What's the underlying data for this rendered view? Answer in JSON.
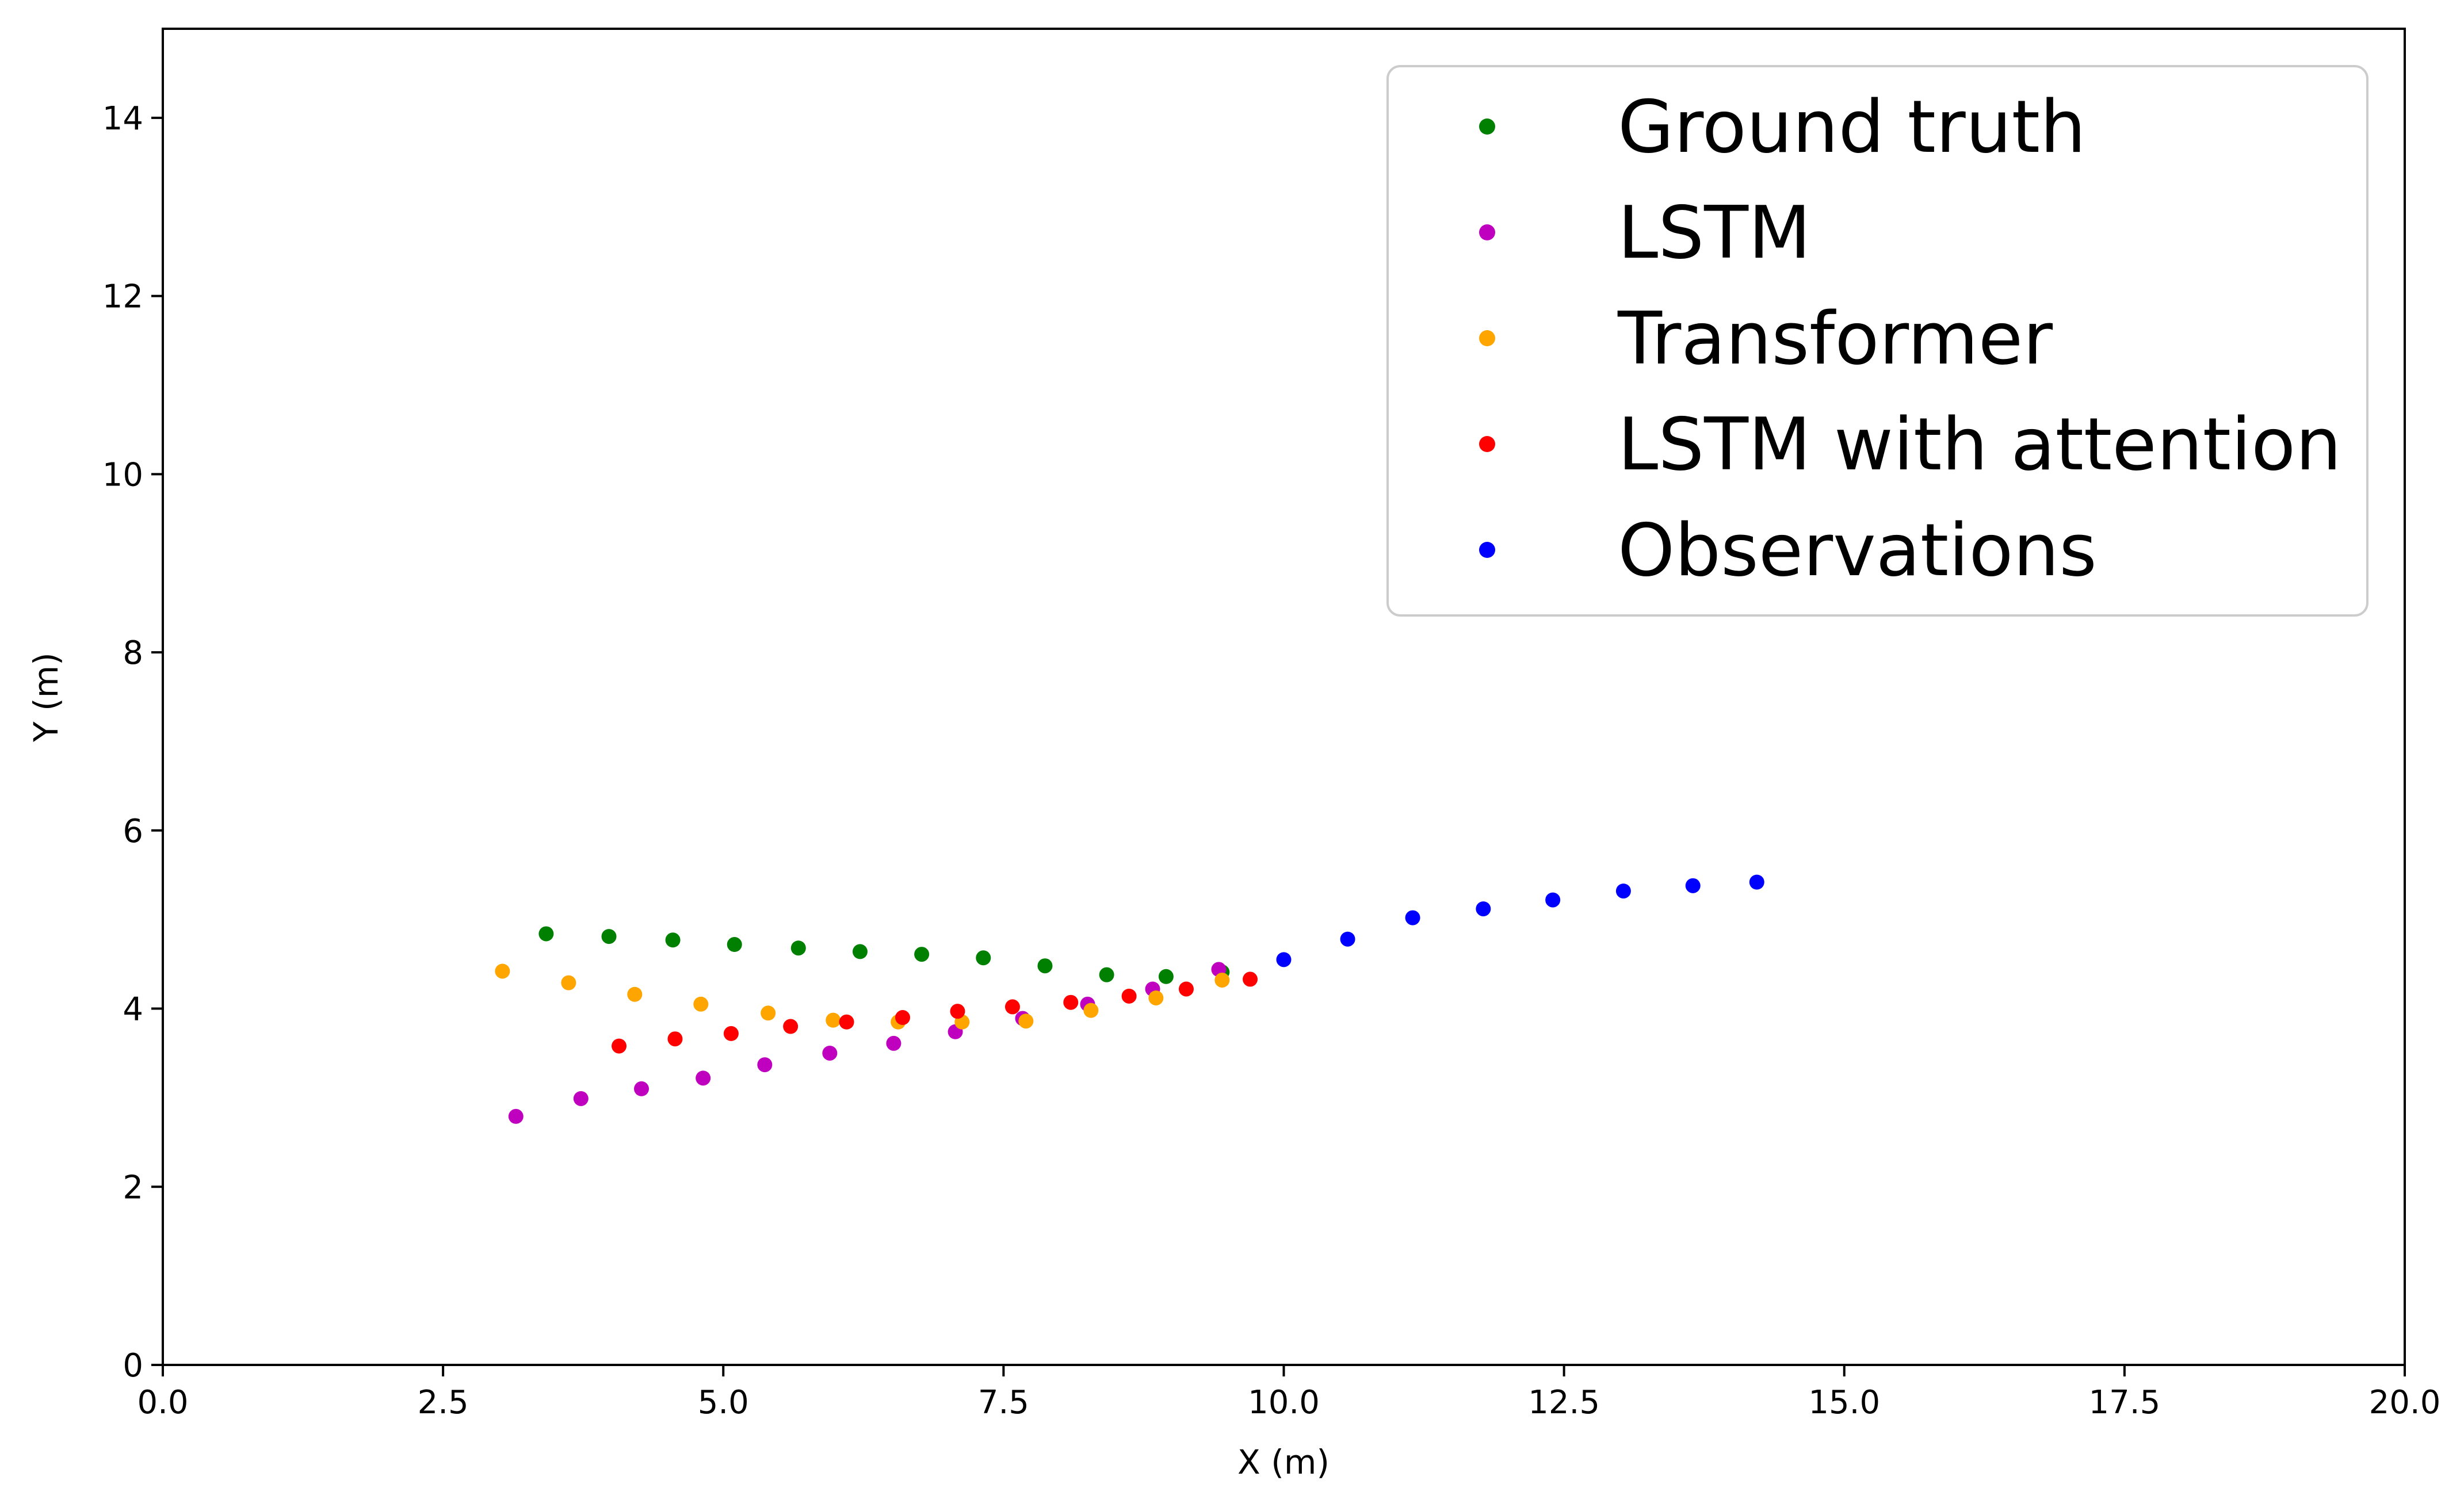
{
  "chart_data": {
    "type": "scatter",
    "xlabel": "X (m)",
    "ylabel": "Y (m)",
    "xlim": [
      0,
      20
    ],
    "ylim": [
      0,
      15
    ],
    "xticks": [
      {
        "value": 0,
        "label": "0.0"
      },
      {
        "value": 2.5,
        "label": "2.5"
      },
      {
        "value": 5,
        "label": "5.0"
      },
      {
        "value": 7.5,
        "label": "7.5"
      },
      {
        "value": 10,
        "label": "10.0"
      },
      {
        "value": 12.5,
        "label": "12.5"
      },
      {
        "value": 15,
        "label": "15.0"
      },
      {
        "value": 17.5,
        "label": "17.5"
      },
      {
        "value": 20,
        "label": "20.0"
      }
    ],
    "yticks": [
      {
        "value": 0,
        "label": "0"
      },
      {
        "value": 2,
        "label": "2"
      },
      {
        "value": 4,
        "label": "4"
      },
      {
        "value": 6,
        "label": "6"
      },
      {
        "value": 8,
        "label": "8"
      },
      {
        "value": 10,
        "label": "10"
      },
      {
        "value": 12,
        "label": "12"
      },
      {
        "value": 14,
        "label": "14"
      }
    ],
    "grid": false,
    "legend_position": "top-right",
    "series": [
      {
        "name": "Ground truth",
        "color": "#008000",
        "points": [
          [
            3.42,
            4.84
          ],
          [
            3.98,
            4.81
          ],
          [
            4.55,
            4.77
          ],
          [
            5.1,
            4.72
          ],
          [
            5.67,
            4.68
          ],
          [
            6.22,
            4.64
          ],
          [
            6.77,
            4.61
          ],
          [
            7.32,
            4.57
          ],
          [
            7.87,
            4.48
          ],
          [
            8.42,
            4.38
          ],
          [
            8.95,
            4.36
          ],
          [
            9.45,
            4.41
          ]
        ]
      },
      {
        "name": "LSTM",
        "color": "#bf00bf",
        "points": [
          [
            3.15,
            2.79
          ],
          [
            3.73,
            2.99
          ],
          [
            4.27,
            3.1
          ],
          [
            4.82,
            3.22
          ],
          [
            5.37,
            3.37
          ],
          [
            5.95,
            3.5
          ],
          [
            6.52,
            3.61
          ],
          [
            7.07,
            3.74
          ],
          [
            7.67,
            3.89
          ],
          [
            8.25,
            4.05
          ],
          [
            8.83,
            4.22
          ],
          [
            9.42,
            4.44
          ]
        ]
      },
      {
        "name": "Transformer",
        "color": "#ffa500",
        "points": [
          [
            3.03,
            4.42
          ],
          [
            3.62,
            4.29
          ],
          [
            4.21,
            4.16
          ],
          [
            4.8,
            4.05
          ],
          [
            5.4,
            3.95
          ],
          [
            5.98,
            3.87
          ],
          [
            6.56,
            3.85
          ],
          [
            7.13,
            3.85
          ],
          [
            7.7,
            3.86
          ],
          [
            8.28,
            3.98
          ],
          [
            8.86,
            4.12
          ],
          [
            9.45,
            4.32
          ]
        ]
      },
      {
        "name": "LSTM with attention",
        "color": "#ff0000",
        "points": [
          [
            4.07,
            3.58
          ],
          [
            4.57,
            3.66
          ],
          [
            5.07,
            3.72
          ],
          [
            5.6,
            3.8
          ],
          [
            6.1,
            3.85
          ],
          [
            6.6,
            3.9
          ],
          [
            7.09,
            3.97
          ],
          [
            7.58,
            4.02
          ],
          [
            8.1,
            4.07
          ],
          [
            8.62,
            4.14
          ],
          [
            9.13,
            4.22
          ],
          [
            9.7,
            4.33
          ]
        ]
      },
      {
        "name": "Observations",
        "color": "#0000ff",
        "points": [
          [
            10.0,
            4.55
          ],
          [
            10.57,
            4.78
          ],
          [
            11.15,
            5.02
          ],
          [
            11.78,
            5.12
          ],
          [
            12.4,
            5.22
          ],
          [
            13.03,
            5.32
          ],
          [
            13.65,
            5.38
          ],
          [
            14.22,
            5.42
          ]
        ]
      }
    ]
  }
}
